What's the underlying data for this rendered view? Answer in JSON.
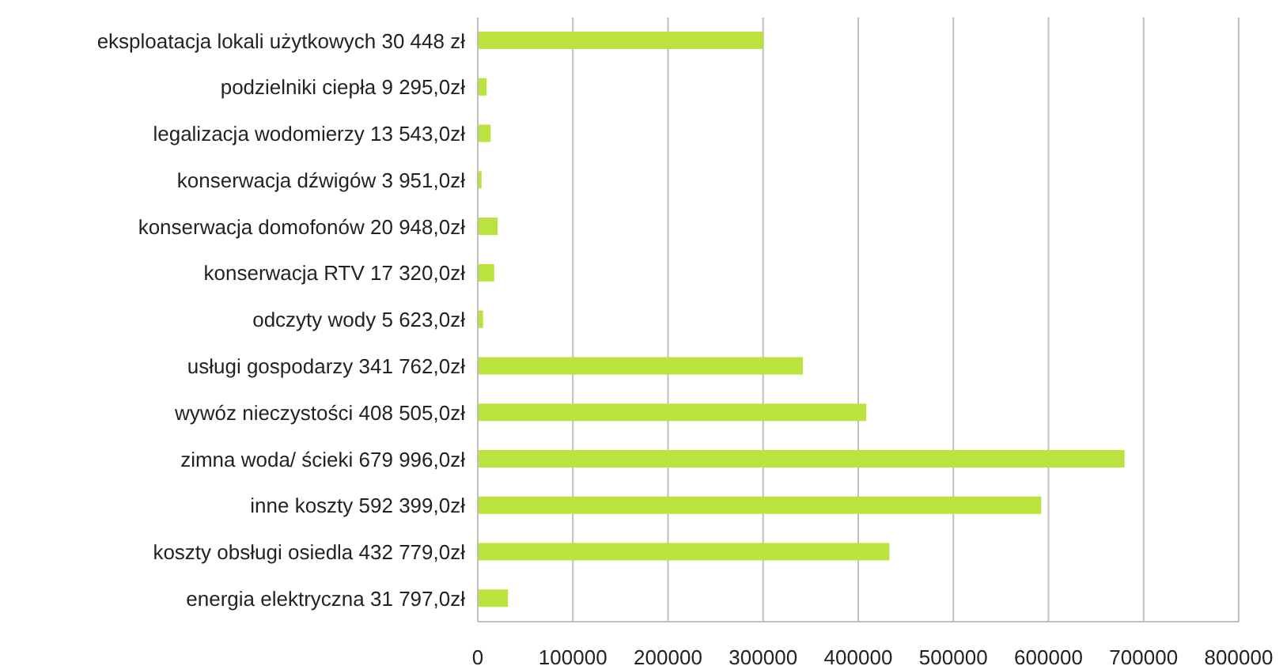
{
  "chart_data": {
    "type": "bar",
    "orientation": "horizontal",
    "categories": [
      "eksploatacja lokali użytkowych 30 448 zł",
      "podzielniki ciepła 9 295,0zł",
      "legalizacja wodomierzy 13 543,0zł",
      "konserwacja dźwigów  3 951,0zł",
      "konserwacja domofonów 20 948,0zł",
      "konserwacja RTV  17 320,0zł",
      "odczyty wody  5 623,0zł",
      "usługi gospodarzy  341 762,0zł",
      "wywóz nieczystości  408 505,0zł",
      "zimna woda/ ścieki  679 996,0zł",
      "inne koszty 592 399,0zł",
      "koszty obsługi osiedla 432 779,0zł",
      "energia elektryczna 31 797,0zł"
    ],
    "values": [
      300000,
      9295,
      13543,
      3951,
      20948,
      17320,
      5623,
      341762,
      408505,
      679996,
      592399,
      432779,
      31797
    ],
    "color": "#bbe33d",
    "xlim": [
      0,
      800000
    ],
    "xticks": [
      0,
      100000,
      200000,
      300000,
      400000,
      500000,
      600000,
      700000,
      800000
    ],
    "grid": "x",
    "legend": false
  }
}
